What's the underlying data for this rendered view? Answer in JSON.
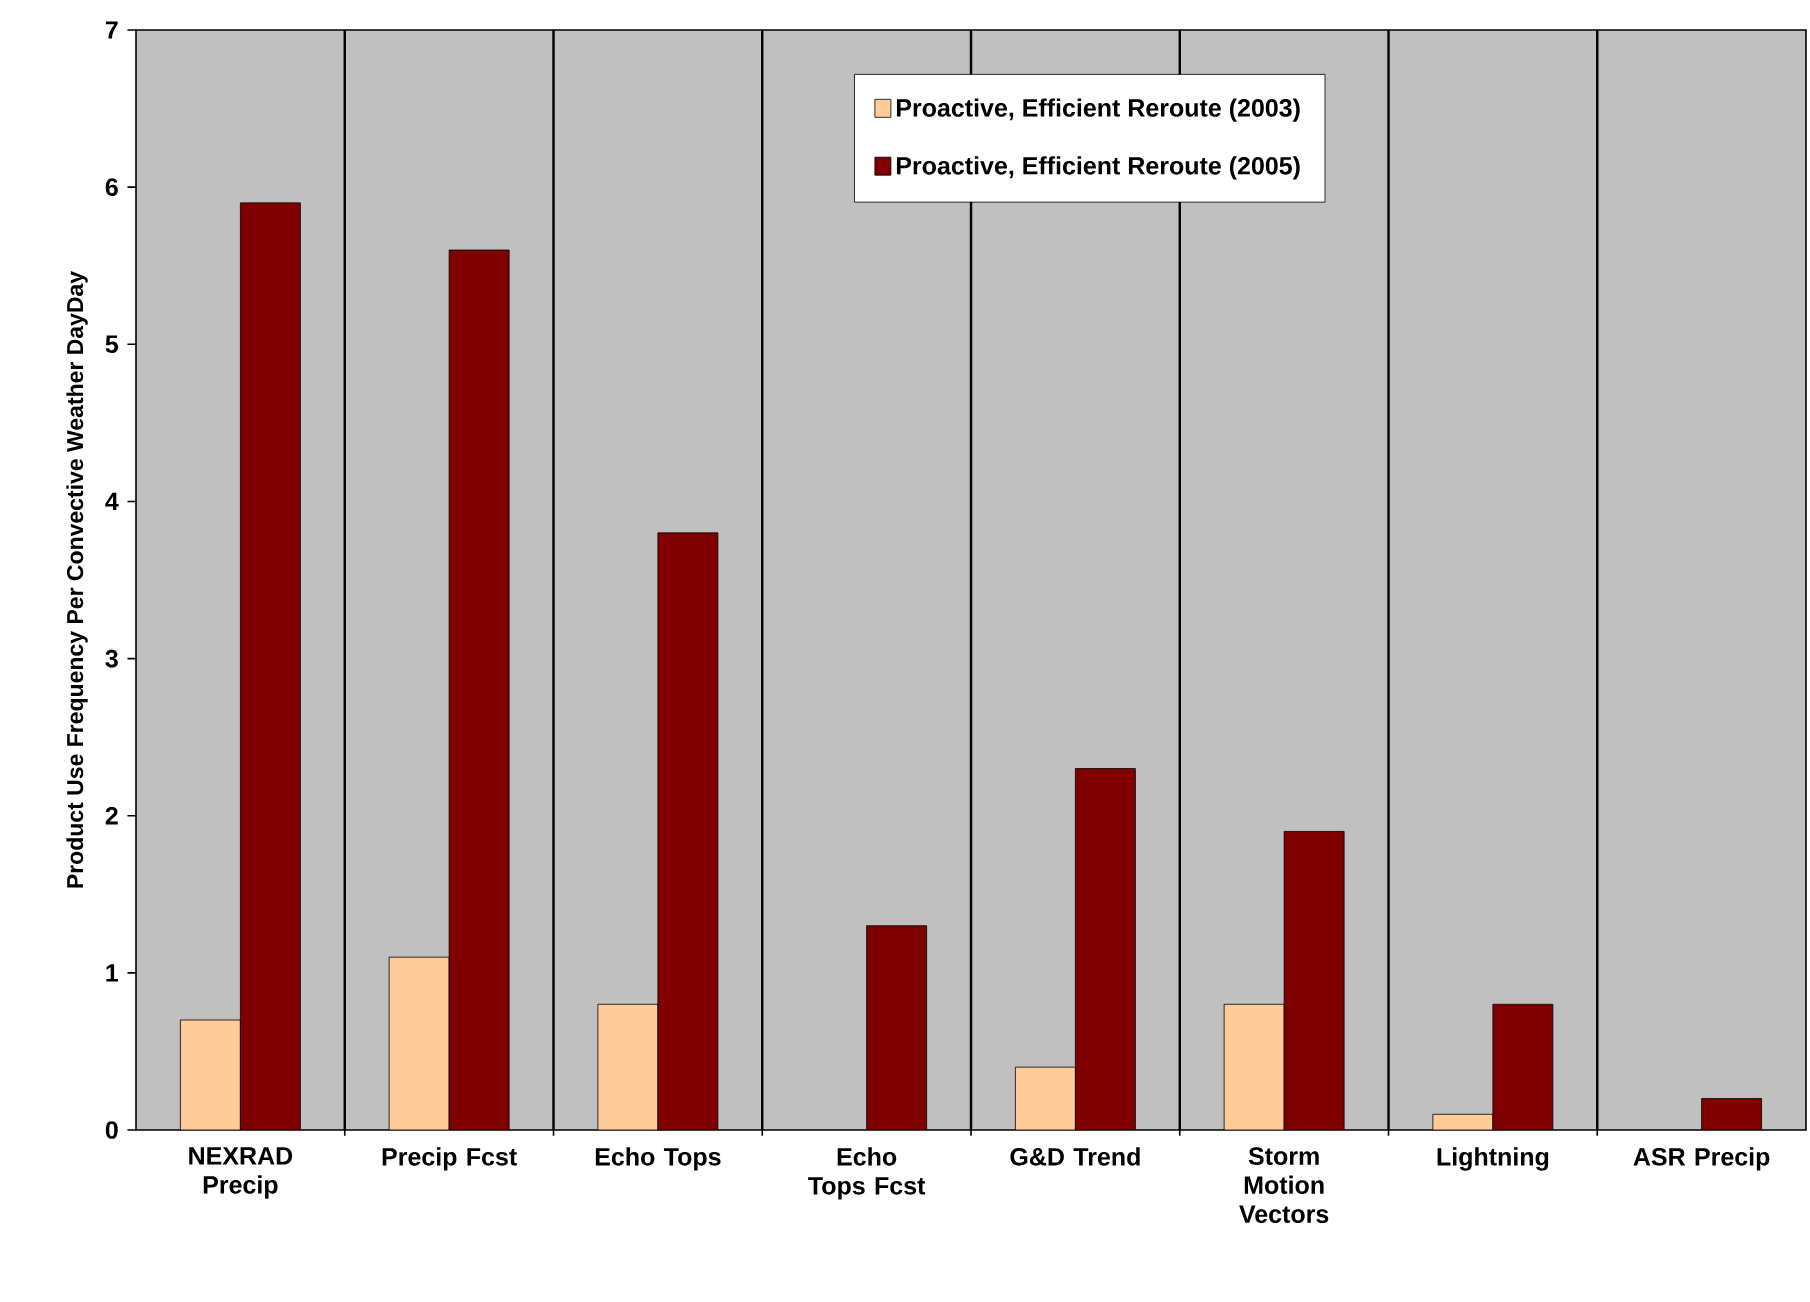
{
  "chart_data": {
    "type": "bar",
    "ylabel": "Product Use Frequency Per Convective Weather DayDay",
    "categories": [
      "NEXRAD Precip",
      "Precip Fcst",
      "Echo Tops",
      "Echo Tops Fcst",
      "G&D Trend",
      "Storm Motion Vectors",
      "Lightning",
      "ASR Precip"
    ],
    "series": [
      {
        "name": "Proactive, Efficient Reroute (2003)",
        "color": "#ffcc99",
        "values": [
          0.7,
          1.1,
          0.8,
          null,
          0.4,
          0.8,
          0.1,
          null
        ]
      },
      {
        "name": "Proactive, Efficient Reroute (2005)",
        "color": "#800000",
        "values": [
          5.9,
          5.6,
          3.8,
          1.3,
          2.3,
          1.9,
          0.8,
          0.2
        ]
      }
    ],
    "ylim": [
      0,
      7
    ],
    "yticks": [
      0,
      1,
      2,
      3,
      4,
      5,
      6,
      7
    ],
    "grid": "x",
    "legend": "top right"
  }
}
